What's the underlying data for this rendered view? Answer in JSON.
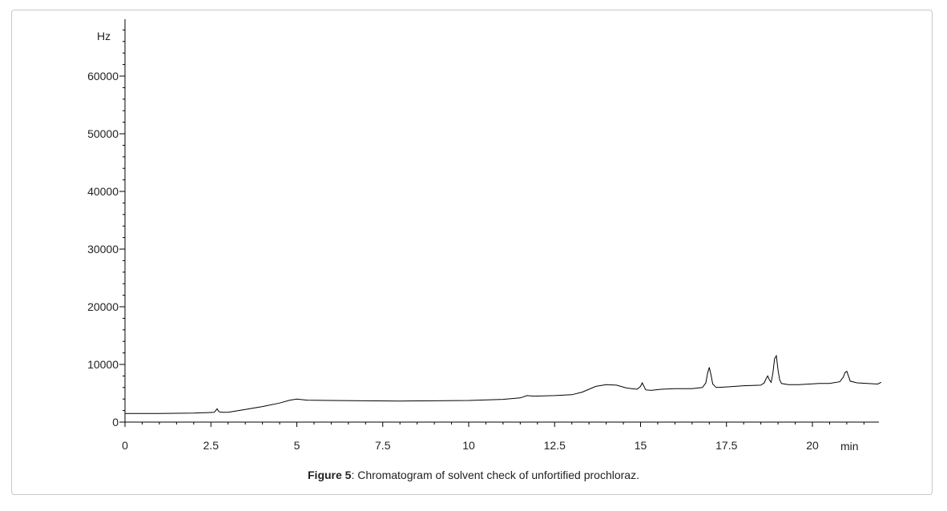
{
  "chart_data": {
    "type": "line",
    "title": "",
    "xlabel": "min",
    "ylabel": "Hz",
    "xlim": [
      0,
      22
    ],
    "ylim": [
      0,
      70000
    ],
    "x_ticks": [
      0,
      2.5,
      5,
      7.5,
      10,
      12.5,
      15,
      17.5,
      20
    ],
    "x_tick_labels": [
      "0",
      "2.5",
      "5",
      "7.5",
      "10",
      "12.5",
      "15",
      "17.5",
      "20"
    ],
    "y_ticks": [
      0,
      10000,
      20000,
      30000,
      40000,
      50000,
      60000
    ],
    "y_tick_labels": [
      "0",
      "10000",
      "20000",
      "30000",
      "40000",
      "50000",
      "60000"
    ],
    "grid": false,
    "line_color": "#000000",
    "series": [
      {
        "x": [
          0,
          1.0,
          2.0,
          2.6,
          2.68,
          2.72,
          2.76,
          2.85,
          3.0,
          3.5,
          4.0,
          4.5,
          4.8,
          5.0,
          5.3,
          6.0,
          7.0,
          8.0,
          9.0,
          10.0,
          11.0,
          11.5,
          11.7,
          11.9,
          12.2,
          12.5,
          13.0,
          13.3,
          13.7,
          14.0,
          14.3,
          14.6,
          14.9,
          15.0,
          15.05,
          15.1,
          15.15,
          15.3,
          15.6,
          16.0,
          16.5,
          16.8,
          16.9,
          16.95,
          17.0,
          17.05,
          17.1,
          17.2,
          17.5,
          18.0,
          18.5,
          18.6,
          18.65,
          18.7,
          18.75,
          18.8,
          18.85,
          18.9,
          18.95,
          19.0,
          19.05,
          19.1,
          19.3,
          19.6,
          19.9,
          20.2,
          20.5,
          20.8,
          20.9,
          20.95,
          21.0,
          21.05,
          21.1,
          21.3,
          21.6,
          21.9,
          22.0
        ],
        "y": [
          1500,
          1500,
          1550,
          1700,
          2300,
          1900,
          1750,
          1700,
          1700,
          2200,
          2700,
          3300,
          3800,
          4000,
          3800,
          3750,
          3700,
          3650,
          3700,
          3750,
          3950,
          4200,
          4600,
          4500,
          4550,
          4600,
          4750,
          5200,
          6200,
          6500,
          6400,
          5900,
          5700,
          6200,
          6800,
          6200,
          5600,
          5500,
          5700,
          5800,
          5800,
          6000,
          6800,
          8500,
          9500,
          8200,
          6600,
          6000,
          6100,
          6300,
          6400,
          6800,
          7500,
          8000,
          7300,
          6900,
          8500,
          11000,
          11500,
          9000,
          7300,
          6700,
          6500,
          6500,
          6600,
          6700,
          6700,
          7000,
          7800,
          8600,
          8800,
          8000,
          7100,
          6800,
          6700,
          6600,
          6900
        ]
      }
    ]
  },
  "caption": {
    "label": "Figure 5",
    "text": ": Chromatogram of solvent check of unfortified prochloraz."
  }
}
